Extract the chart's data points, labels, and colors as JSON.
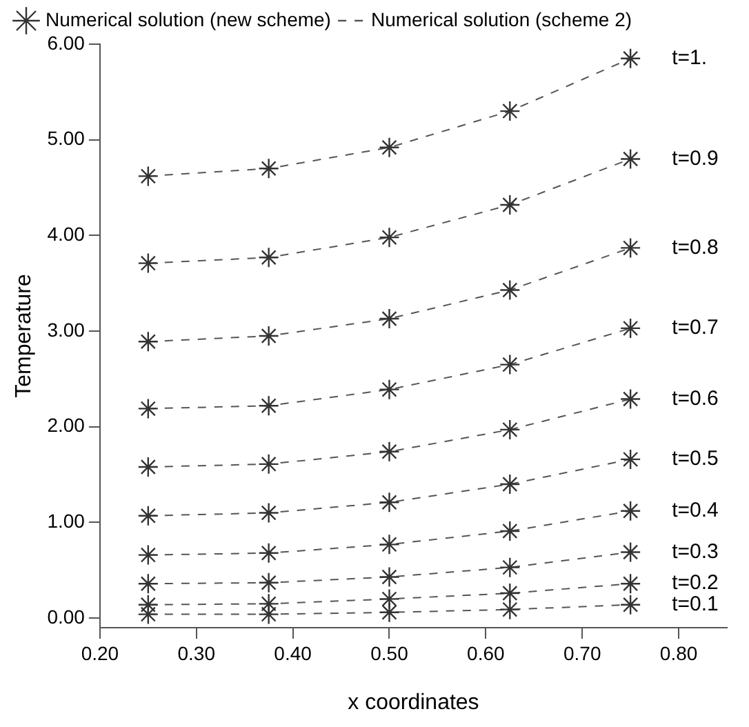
{
  "chart_data": {
    "type": "line",
    "xlabel": "x coordinates",
    "ylabel": "Temperature",
    "x": [
      0.25,
      0.375,
      0.5,
      0.625,
      0.75
    ],
    "xlim": [
      0.2,
      0.85
    ],
    "xticks": [
      {
        "value": 0.2,
        "label": "0.20"
      },
      {
        "value": 0.3,
        "label": "0.30"
      },
      {
        "value": 0.4,
        "label": "0.40"
      },
      {
        "value": 0.5,
        "label": "0.50"
      },
      {
        "value": 0.6,
        "label": "0.60"
      },
      {
        "value": 0.7,
        "label": "0.70"
      },
      {
        "value": 0.8,
        "label": "0.80"
      }
    ],
    "ylim": [
      -0.1,
      6.0
    ],
    "yticks": [
      {
        "value": 0,
        "label": "0.00"
      },
      {
        "value": 1,
        "label": "1.00"
      },
      {
        "value": 2,
        "label": "2.00"
      },
      {
        "value": 3,
        "label": "3.00"
      },
      {
        "value": 4,
        "label": "4.00"
      },
      {
        "value": 5,
        "label": "5.00"
      },
      {
        "value": 6,
        "label": "6.00"
      }
    ],
    "grid": false,
    "legend": "top left",
    "series": [
      {
        "name": "Numerical solution (new scheme)",
        "type": "scatter",
        "marker": "cross",
        "color": "#333333",
        "values": [
          4.62,
          4.7,
          4.92,
          5.3,
          5.85
        ]
      },
      {
        "name": "Numerical solution (scheme 2)",
        "type": "line",
        "marker": "none",
        "line_style": "dashed",
        "color": "#555555",
        "values": [
          4.62,
          4.7,
          4.92,
          5.3,
          5.85
        ]
      },
      {
        "type": "scatter",
        "marker": "cross",
        "color": "#333333",
        "values": [
          3.71,
          3.77,
          3.98,
          4.32,
          4.8
        ]
      },
      {
        "type": "line",
        "marker": "none",
        "line_style": "dashed",
        "color": "#555555",
        "values": [
          3.71,
          3.77,
          3.98,
          4.32,
          4.8
        ]
      },
      {
        "type": "scatter",
        "marker": "cross",
        "color": "#333333",
        "values": [
          2.89,
          2.95,
          3.13,
          3.43,
          3.87
        ]
      },
      {
        "type": "line",
        "marker": "none",
        "line_style": "dashed",
        "color": "#555555",
        "values": [
          2.89,
          2.95,
          3.13,
          3.43,
          3.87
        ]
      },
      {
        "type": "scatter",
        "marker": "cross",
        "color": "#333333",
        "values": [
          2.19,
          2.22,
          2.39,
          2.65,
          3.03
        ]
      },
      {
        "type": "line",
        "marker": "none",
        "line_style": "dashed",
        "color": "#555555",
        "values": [
          2.19,
          2.22,
          2.39,
          2.65,
          3.03
        ]
      },
      {
        "type": "scatter",
        "marker": "cross",
        "color": "#333333",
        "values": [
          1.58,
          1.61,
          1.74,
          1.97,
          2.29
        ]
      },
      {
        "type": "line",
        "marker": "none",
        "line_style": "dashed",
        "color": "#555555",
        "values": [
          1.58,
          1.61,
          1.74,
          1.97,
          2.29
        ]
      },
      {
        "type": "scatter",
        "marker": "cross",
        "color": "#333333",
        "values": [
          1.07,
          1.1,
          1.21,
          1.4,
          1.66
        ]
      },
      {
        "type": "line",
        "marker": "none",
        "line_style": "dashed",
        "color": "#555555",
        "values": [
          1.07,
          1.1,
          1.21,
          1.4,
          1.66
        ]
      },
      {
        "type": "scatter",
        "marker": "cross",
        "color": "#333333",
        "values": [
          0.66,
          0.68,
          0.77,
          0.91,
          1.12
        ]
      },
      {
        "type": "line",
        "marker": "none",
        "line_style": "dashed",
        "color": "#555555",
        "values": [
          0.66,
          0.68,
          0.77,
          0.91,
          1.12
        ]
      },
      {
        "type": "scatter",
        "marker": "cross",
        "color": "#333333",
        "values": [
          0.36,
          0.37,
          0.43,
          0.53,
          0.69
        ]
      },
      {
        "type": "line",
        "marker": "none",
        "line_style": "dashed",
        "color": "#555555",
        "values": [
          0.36,
          0.37,
          0.43,
          0.53,
          0.69
        ]
      },
      {
        "type": "scatter",
        "marker": "cross",
        "color": "#333333",
        "values": [
          0.14,
          0.15,
          0.2,
          0.26,
          0.36
        ]
      },
      {
        "type": "line",
        "marker": "none",
        "line_style": "dashed",
        "color": "#555555",
        "values": [
          0.14,
          0.15,
          0.2,
          0.26,
          0.36
        ]
      },
      {
        "type": "scatter",
        "marker": "cross",
        "color": "#333333",
        "values": [
          0.04,
          0.04,
          0.06,
          0.09,
          0.14
        ]
      },
      {
        "type": "line",
        "marker": "none",
        "line_style": "dashed",
        "color": "#555555",
        "values": [
          0.04,
          0.04,
          0.06,
          0.09,
          0.14
        ]
      }
    ],
    "annotations": [
      "t=1.",
      "t=0.9",
      "t=0.8",
      "t=0.7",
      "t=0.6",
      "t=0.5",
      "t=0.4",
      "t=0.3",
      "t=0.2",
      "t=0.1"
    ]
  }
}
